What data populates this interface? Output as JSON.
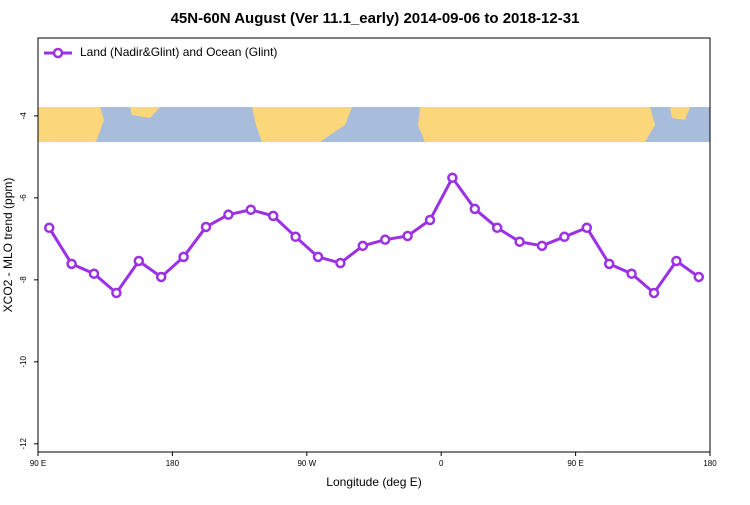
{
  "chart_data": {
    "type": "line",
    "title": "45N-60N August (Ver 11.1_early)   2014-09-06 to 2018-12-31",
    "x_label": "Longitude (deg E)",
    "y_label": "XCO2 - MLO trend (ppm)",
    "x": [
      97.5,
      112.5,
      127.5,
      142.5,
      157.5,
      172.5,
      187.5,
      202.5,
      217.5,
      232.5,
      247.5,
      262.5,
      277.5,
      292.5,
      307.5,
      322.5,
      337.5,
      352.5,
      367.5,
      382.5,
      397.5,
      412.5,
      427.5,
      442.5,
      457.5,
      472.5,
      487.5,
      502.5,
      517.5,
      532.5
    ],
    "series": [
      {
        "name": "Land (Nadir&Glint) and Ocean (Glint)",
        "color": "#9b30e6",
        "values": [
          -6.73,
          -7.61,
          -7.85,
          -8.32,
          -7.54,
          -7.93,
          -7.44,
          -6.71,
          -6.41,
          -6.29,
          -6.44,
          -6.95,
          -7.44,
          -7.59,
          -7.17,
          -7.02,
          -6.93,
          -6.54,
          -5.51,
          -6.27,
          -6.73,
          -7.07,
          -7.17,
          -6.95,
          -6.73,
          -7.61,
          -7.85,
          -8.32,
          -7.54,
          -7.93
        ]
      }
    ],
    "xlim": [
      90,
      540
    ],
    "xticks": [
      {
        "value": 90,
        "label": "90 E"
      },
      {
        "value": 180,
        "label": "180"
      },
      {
        "value": 270,
        "label": "90 W"
      },
      {
        "value": 360,
        "label": "0"
      },
      {
        "value": 450,
        "label": "90 E"
      },
      {
        "value": 540,
        "label": "180"
      }
    ],
    "ylim": [
      -12.2,
      -2.1
    ],
    "yticks": [
      -12,
      -10,
      -8,
      -6,
      -4
    ],
    "legend": "top-left"
  }
}
